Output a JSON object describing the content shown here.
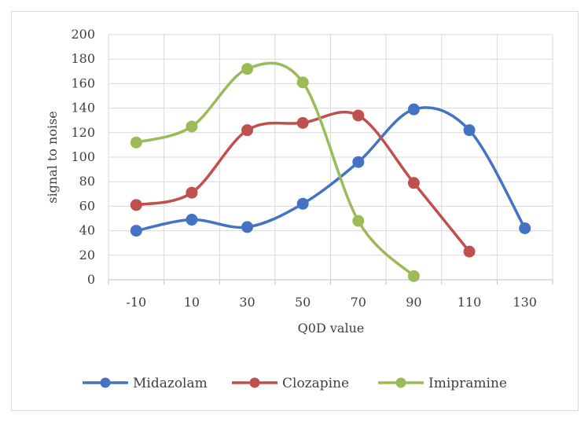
{
  "chart_data": {
    "type": "line",
    "smooth": true,
    "title": "",
    "xlabel": "Q0D value",
    "ylabel": "signal to noise",
    "categories": [
      "-10",
      "10",
      "30",
      "50",
      "70",
      "90",
      "110",
      "130"
    ],
    "ylim": [
      0,
      200
    ],
    "yticks": [
      0,
      20,
      40,
      60,
      80,
      100,
      120,
      140,
      160,
      180,
      200
    ],
    "grid": true,
    "legend_position": "bottom",
    "series": [
      {
        "name": "Midazolam",
        "color": "#4472C4",
        "x": [
          "-10",
          "10",
          "30",
          "50",
          "70",
          "90",
          "110",
          "130"
        ],
        "values": [
          40,
          49,
          43,
          62,
          96,
          139,
          122,
          42
        ]
      },
      {
        "name": "Clozapine",
        "color": "#C0504D",
        "x": [
          "-10",
          "10",
          "30",
          "50",
          "70",
          "90",
          "110"
        ],
        "values": [
          61,
          71,
          122,
          128,
          134,
          79,
          23
        ]
      },
      {
        "name": "Imipramine",
        "color": "#9BBB59",
        "x": [
          "-10",
          "10",
          "30",
          "50",
          "70",
          "90"
        ],
        "values": [
          112,
          125,
          172,
          161,
          48,
          3
        ]
      }
    ]
  }
}
